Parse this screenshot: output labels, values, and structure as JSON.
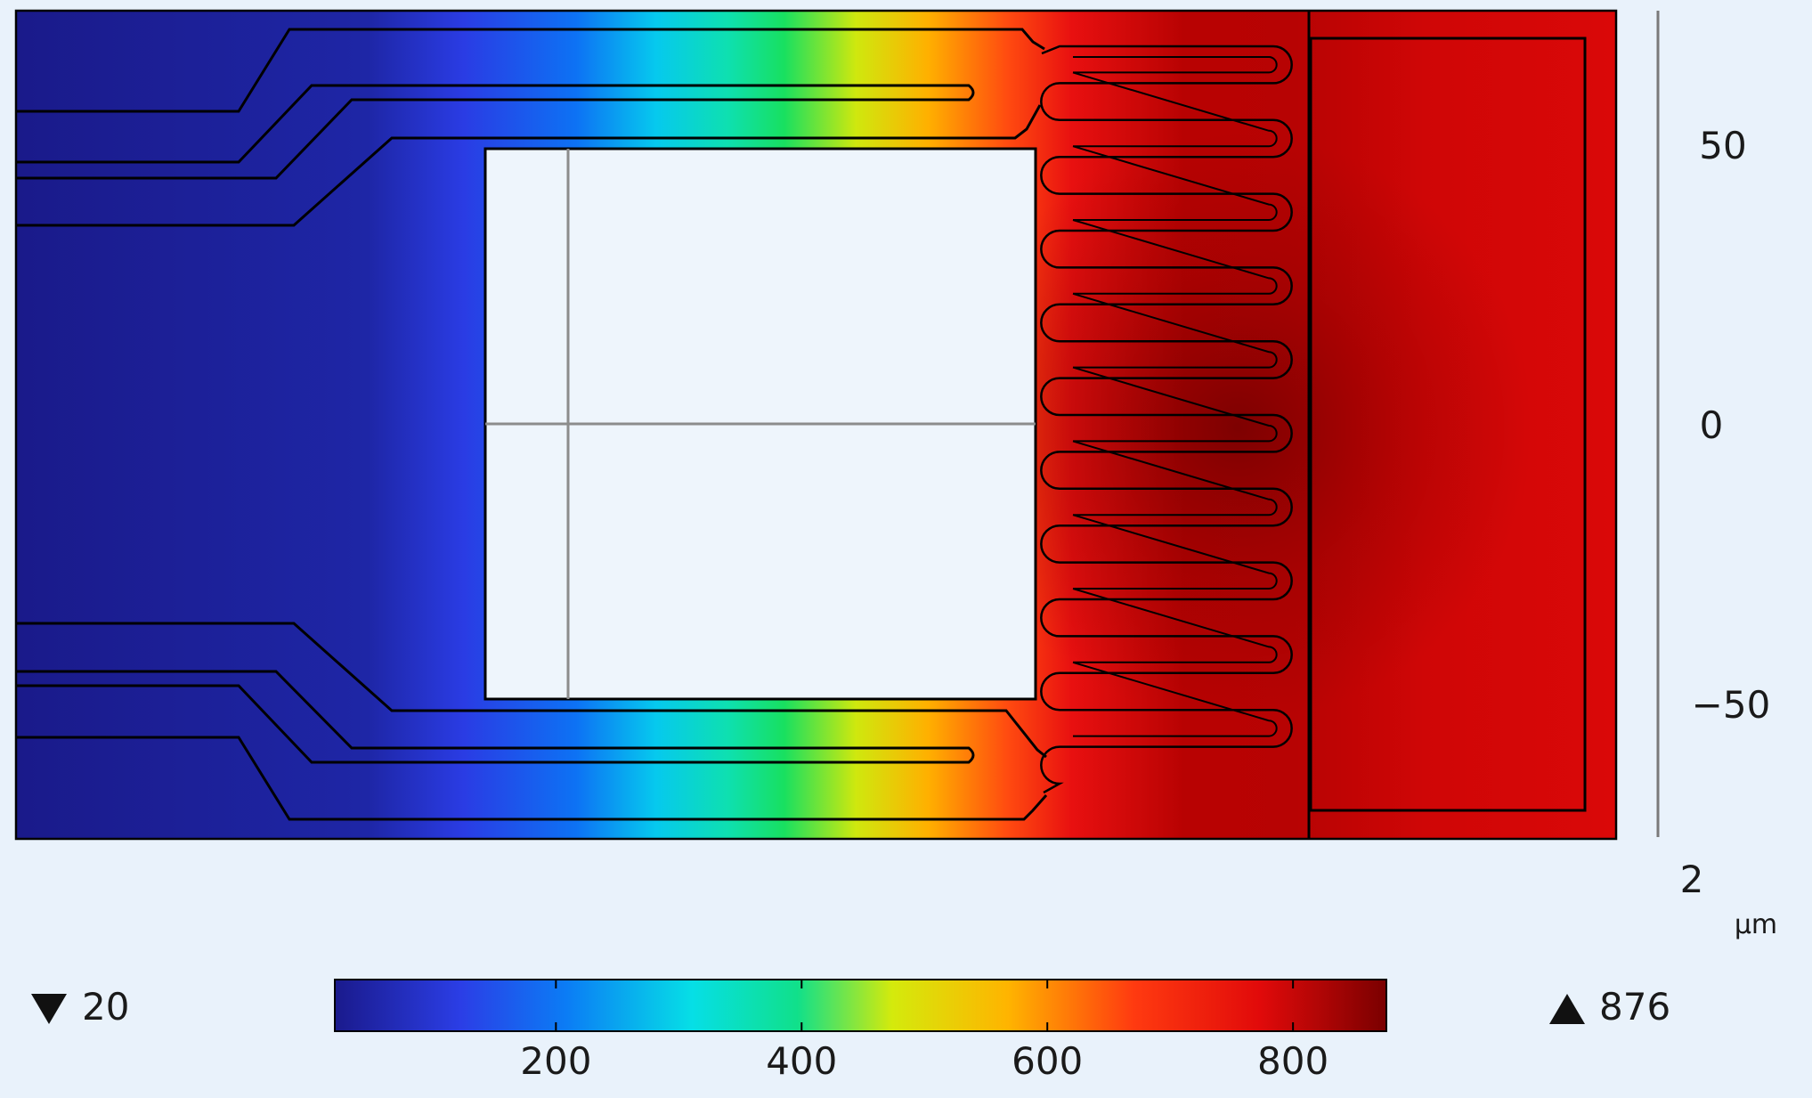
{
  "plot": {
    "y_axis_ticks": [
      "50",
      "0",
      "−50"
    ],
    "scale_value": "2",
    "unit_label": "µm"
  },
  "colorbar": {
    "min_label": "20",
    "max_label": "876",
    "ticks": [
      "200",
      "400",
      "600",
      "800"
    ],
    "range": [
      20,
      876
    ],
    "stops": [
      "#1a1a8c",
      "#2b3ee6",
      "#0b7cf5",
      "#06dfe6",
      "#10e08a",
      "#d4ea0c",
      "#ffb400",
      "#ff3a10",
      "#e10a0a",
      "#7a0000"
    ]
  },
  "icons": {
    "min_marker": "down-triangle-icon",
    "max_marker": "up-triangle-icon"
  }
}
